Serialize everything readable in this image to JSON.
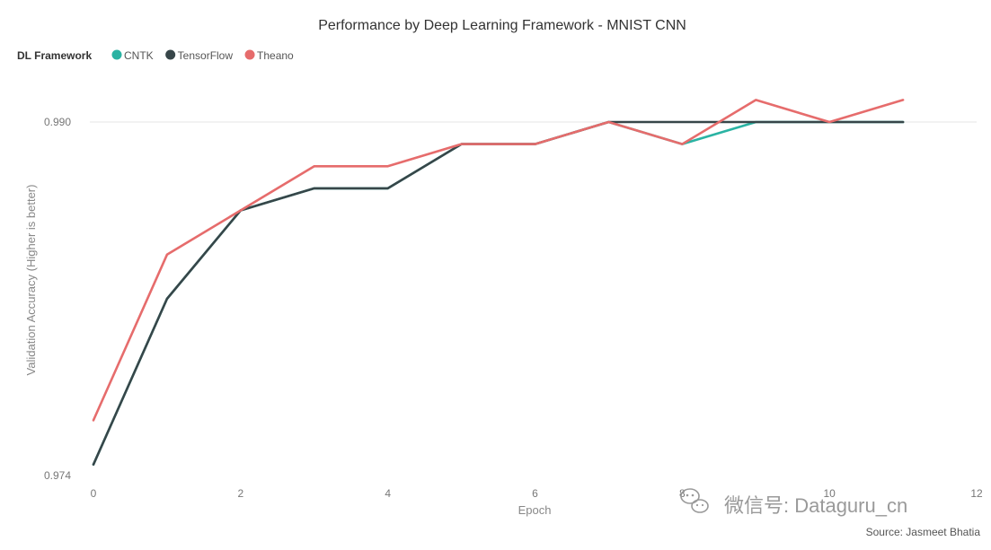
{
  "chart_data": {
    "type": "line",
    "title": "Performance by Deep Learning Framework - MNIST CNN",
    "legend_title": "DL Framework",
    "legend_position": "top-left",
    "xlabel": "Epoch",
    "ylabel": "Validation Accuracy (Higher is better)",
    "xlim": [
      0,
      12
    ],
    "ylim": [
      0.974,
      0.99
    ],
    "x_ticks": [
      "0",
      "2",
      "4",
      "6",
      "8",
      "10",
      "12"
    ],
    "y_ticks": [
      "0.974",
      "0.990"
    ],
    "grid": "horizontal",
    "x": [
      0,
      1,
      2,
      3,
      4,
      5,
      6,
      7,
      8,
      9,
      10,
      11
    ],
    "series": [
      {
        "name": "CNTK",
        "color": "#2ab3a3",
        "values": [
          0.9745,
          0.982,
          0.986,
          0.987,
          0.987,
          0.989,
          0.989,
          0.99,
          0.989,
          0.99,
          0.99,
          0.99
        ]
      },
      {
        "name": "TensorFlow",
        "color": "#374649",
        "values": [
          0.9745,
          0.982,
          0.986,
          0.987,
          0.987,
          0.989,
          0.989,
          0.99,
          0.99,
          0.99,
          0.99,
          0.99
        ]
      },
      {
        "name": "Theano",
        "color": "#e66c6c",
        "values": [
          0.9765,
          0.984,
          0.986,
          0.988,
          0.988,
          0.989,
          0.989,
          0.99,
          0.989,
          0.991,
          0.99,
          0.991
        ]
      }
    ],
    "source": "Source: Jasmeet Bhatia"
  },
  "watermark": {
    "text": "微信号: Dataguru_cn",
    "icon": "wechat-icon"
  }
}
